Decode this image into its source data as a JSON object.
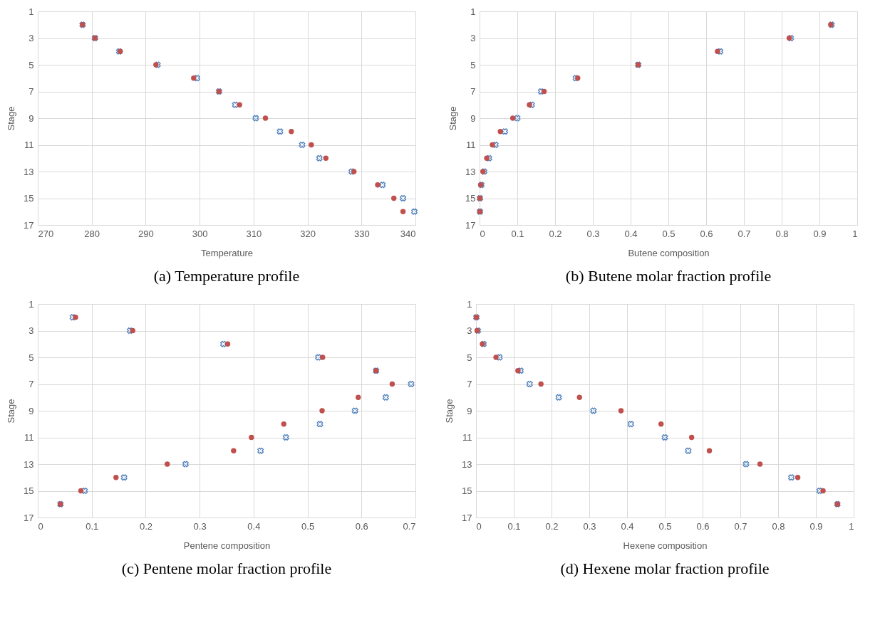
{
  "chart_data": [
    {
      "type": "scatter",
      "title": "(a) Temperature profile",
      "xlabel": "Temperature",
      "ylabel": "Stage",
      "xlim": [
        270,
        340
      ],
      "xticks": [
        270,
        280,
        290,
        300,
        310,
        320,
        330,
        340
      ],
      "ylim": [
        17,
        1
      ],
      "yticks": [
        1,
        3,
        5,
        7,
        9,
        11,
        13,
        15,
        17
      ],
      "grid": true,
      "series": [
        {
          "color": "#4f81bd",
          "marker": "cross",
          "x": [
            278.3,
            280.6,
            285.1,
            292.2,
            299.5,
            303.6,
            306.6,
            310.4,
            314.9,
            319.0,
            322.2,
            328.2,
            333.9,
            337.7,
            339.8
          ],
          "values": [
            2,
            3,
            4,
            5,
            6,
            7,
            8,
            9,
            10,
            11,
            12,
            13,
            14,
            15,
            16
          ]
        },
        {
          "color": "#c0504d",
          "marker": "circle",
          "x": [
            278.3,
            280.6,
            285.3,
            291.9,
            298.9,
            303.6,
            307.4,
            312.2,
            317.0,
            320.7,
            323.4,
            328.6,
            333.0,
            336.0,
            337.7
          ],
          "values": [
            2,
            3,
            4,
            5,
            6,
            7,
            8,
            9,
            10,
            11,
            12,
            13,
            14,
            15,
            16
          ]
        }
      ]
    },
    {
      "type": "scatter",
      "title": "(b) Butene molar fraction profile",
      "xlabel": "Butene composition",
      "ylabel": "Stage",
      "xlim": [
        0,
        1
      ],
      "xticks": [
        0,
        0.1,
        0.2,
        0.3,
        0.4,
        0.5,
        0.6,
        0.7,
        0.8,
        0.9,
        1
      ],
      "ylim": [
        17,
        1
      ],
      "yticks": [
        1,
        3,
        5,
        7,
        9,
        11,
        13,
        15,
        17
      ],
      "grid": true,
      "series": [
        {
          "color": "#4f81bd",
          "marker": "cross",
          "x": [
            0.932,
            0.824,
            0.637,
            0.42,
            0.255,
            0.163,
            0.138,
            0.1,
            0.067,
            0.042,
            0.025,
            0.012,
            0.005,
            0.001,
            0.001
          ],
          "values": [
            2,
            3,
            4,
            5,
            6,
            7,
            8,
            9,
            10,
            11,
            12,
            13,
            14,
            15,
            16
          ]
        },
        {
          "color": "#c0504d",
          "marker": "circle",
          "x": [
            0.93,
            0.82,
            0.63,
            0.42,
            0.26,
            0.171,
            0.132,
            0.088,
            0.055,
            0.034,
            0.019,
            0.009,
            0.003,
            0.001,
            0.001
          ],
          "values": [
            2,
            3,
            4,
            5,
            6,
            7,
            8,
            9,
            10,
            11,
            12,
            13,
            14,
            15,
            16
          ]
        }
      ]
    },
    {
      "type": "scatter",
      "title": "(c) Pentene molar fraction profile",
      "xlabel": "Pentene composition",
      "ylabel": "Stage",
      "xlim": [
        0,
        0.7
      ],
      "xticks": [
        0,
        0.1,
        0.2,
        0.3,
        0.4,
        0.5,
        0.6,
        0.7
      ],
      "ylim": [
        17,
        1
      ],
      "yticks": [
        1,
        3,
        5,
        7,
        9,
        11,
        13,
        15,
        17
      ],
      "grid": true,
      "series": [
        {
          "color": "#4f81bd",
          "marker": "cross",
          "x": [
            0.065,
            0.171,
            0.344,
            0.52,
            0.627,
            0.692,
            0.645,
            0.588,
            0.523,
            0.46,
            0.413,
            0.274,
            0.16,
            0.087,
            0.042
          ],
          "values": [
            2,
            3,
            4,
            5,
            6,
            7,
            8,
            9,
            10,
            11,
            12,
            13,
            14,
            15,
            16
          ]
        },
        {
          "color": "#c0504d",
          "marker": "circle",
          "x": [
            0.07,
            0.176,
            0.352,
            0.528,
            0.627,
            0.657,
            0.594,
            0.527,
            0.456,
            0.396,
            0.363,
            0.24,
            0.145,
            0.08,
            0.042
          ],
          "values": [
            2,
            3,
            4,
            5,
            6,
            7,
            8,
            9,
            10,
            11,
            12,
            13,
            14,
            15,
            16
          ]
        }
      ]
    },
    {
      "type": "scatter",
      "title": "(d) Hexene molar fraction profile",
      "xlabel": "Hexene composition",
      "ylabel": "Stage",
      "xlim": [
        0,
        1
      ],
      "xticks": [
        0,
        0.1,
        0.2,
        0.3,
        0.4,
        0.5,
        0.6,
        0.7,
        0.8,
        0.9,
        1
      ],
      "ylim": [
        17,
        1
      ],
      "yticks": [
        1,
        3,
        5,
        7,
        9,
        11,
        13,
        15,
        17
      ],
      "grid": true,
      "series": [
        {
          "color": "#4f81bd",
          "marker": "cross",
          "x": [
            0.001,
            0.005,
            0.02,
            0.062,
            0.118,
            0.142,
            0.219,
            0.311,
            0.41,
            0.5,
            0.562,
            0.715,
            0.835,
            0.91,
            0.957
          ],
          "values": [
            2,
            3,
            4,
            5,
            6,
            7,
            8,
            9,
            10,
            11,
            12,
            13,
            14,
            15,
            16
          ]
        },
        {
          "color": "#c0504d",
          "marker": "circle",
          "x": [
            0.001,
            0.003,
            0.017,
            0.053,
            0.111,
            0.172,
            0.274,
            0.384,
            0.49,
            0.571,
            0.618,
            0.752,
            0.852,
            0.919,
            0.957
          ],
          "values": [
            2,
            3,
            4,
            5,
            6,
            7,
            8,
            9,
            10,
            11,
            12,
            13,
            14,
            15,
            16
          ]
        }
      ]
    }
  ]
}
